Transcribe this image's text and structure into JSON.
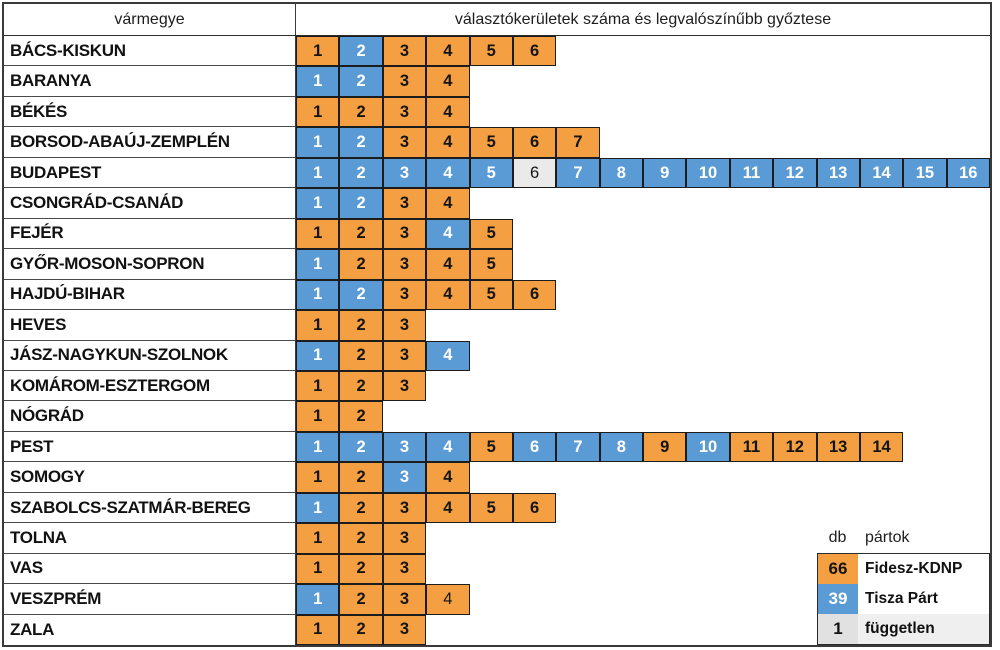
{
  "header": {
    "region_col": "vármegye",
    "districts_col": "választókerületek száma és legvalószínűbb győztese"
  },
  "legend": {
    "count_header": "db",
    "party_header": "pártok",
    "entries": [
      {
        "count": "66",
        "label": "Fidesz-KDNP",
        "code": "F"
      },
      {
        "count": "39",
        "label": "Tisza Párt",
        "code": "T"
      },
      {
        "count": "1",
        "label": "független",
        "code": "I"
      }
    ]
  },
  "colors": {
    "fidesz": "#F4A042",
    "tisza": "#5B9BD5",
    "independent": "#EBEAEA",
    "cell_border": "#1C1C1C",
    "table_border": "#3A3A3A"
  },
  "chart_data": {
    "type": "table",
    "title": "választókerületek száma és legvalószínűbb győztese",
    "code_map": {
      "F": "Fidesz-KDNP",
      "T": "Tisza Párt",
      "I": "független"
    },
    "totals": {
      "Fidesz-KDNP": 66,
      "Tisza Párt": 39,
      "független": 1,
      "districts": 106
    },
    "light_weight_cells": [
      {
        "county": "BUDAPEST",
        "district": 6
      },
      {
        "county": "VESZPRÉM",
        "district": 4
      }
    ],
    "counties": [
      {
        "name": "BÁCS-KISKUN",
        "winners": "FTFFFF"
      },
      {
        "name": "BARANYA",
        "winners": "TTFF"
      },
      {
        "name": "BÉKÉS",
        "winners": "FFFF"
      },
      {
        "name": "BORSOD-ABAÚJ-ZEMPLÉN",
        "winners": "TTFFFFF"
      },
      {
        "name": "BUDAPEST",
        "winners": "TTTTTITTTTTTTTTT"
      },
      {
        "name": "CSONGRÁD-CSANÁD",
        "winners": "TTFF"
      },
      {
        "name": "FEJÉR",
        "winners": "FFFTF"
      },
      {
        "name": "GYŐR-MOSON-SOPRON",
        "winners": "TFFFF"
      },
      {
        "name": "HAJDÚ-BIHAR",
        "winners": "TTFFFF"
      },
      {
        "name": "HEVES",
        "winners": "FFF"
      },
      {
        "name": "JÁSZ-NAGYKUN-SZOLNOK",
        "winners": "TFFT"
      },
      {
        "name": "KOMÁROM-ESZTERGOM",
        "winners": "FFF"
      },
      {
        "name": "NÓGRÁD",
        "winners": "FF"
      },
      {
        "name": "PEST",
        "winners": "TTTTFTTTFTFFFF"
      },
      {
        "name": "SOMOGY",
        "winners": "FFTF"
      },
      {
        "name": "SZABOLCS-SZATMÁR-BEREG",
        "winners": "TFFFFF"
      },
      {
        "name": "TOLNA",
        "winners": "FFF"
      },
      {
        "name": "VAS",
        "winners": "FFF"
      },
      {
        "name": "VESZPRÉM",
        "winners": "TFFF"
      },
      {
        "name": "ZALA",
        "winners": "FFF"
      }
    ]
  }
}
